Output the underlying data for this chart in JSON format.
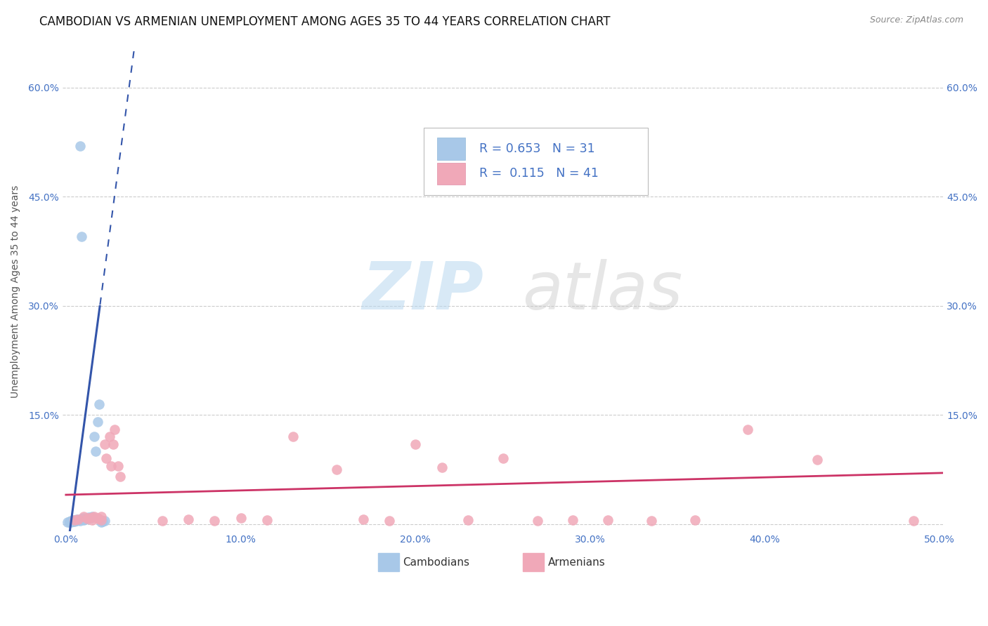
{
  "title": "CAMBODIAN VS ARMENIAN UNEMPLOYMENT AMONG AGES 35 TO 44 YEARS CORRELATION CHART",
  "source": "Source: ZipAtlas.com",
  "ylabel": "Unemployment Among Ages 35 to 44 years",
  "xlim": [
    -0.002,
    0.502
  ],
  "ylim": [
    -0.01,
    0.65
  ],
  "xticks": [
    0.0,
    0.1,
    0.2,
    0.3,
    0.4,
    0.5
  ],
  "xticklabels": [
    "0.0%",
    "10.0%",
    "20.0%",
    "30.0%",
    "40.0%",
    "50.0%"
  ],
  "yticks": [
    0.0,
    0.15,
    0.3,
    0.45,
    0.6
  ],
  "yticklabels": [
    "",
    "15.0%",
    "30.0%",
    "45.0%",
    "60.0%"
  ],
  "grid_color": "#cccccc",
  "background_color": "#ffffff",
  "cambodian_color": "#a8c8e8",
  "armenian_color": "#f0a8b8",
  "cambodian_line_color": "#3355aa",
  "armenian_line_color": "#cc3366",
  "cambodian_scatter": [
    [
      0.001,
      0.002
    ],
    [
      0.002,
      0.003
    ],
    [
      0.002,
      0.002
    ],
    [
      0.003,
      0.004
    ],
    [
      0.003,
      0.002
    ],
    [
      0.004,
      0.005
    ],
    [
      0.004,
      0.003
    ],
    [
      0.005,
      0.004
    ],
    [
      0.005,
      0.003
    ],
    [
      0.006,
      0.006
    ],
    [
      0.006,
      0.004
    ],
    [
      0.007,
      0.005
    ],
    [
      0.008,
      0.006
    ],
    [
      0.008,
      0.004
    ],
    [
      0.009,
      0.007
    ],
    [
      0.01,
      0.005
    ],
    [
      0.01,
      0.008
    ],
    [
      0.011,
      0.006
    ],
    [
      0.012,
      0.007
    ],
    [
      0.013,
      0.009
    ],
    [
      0.014,
      0.008
    ],
    [
      0.015,
      0.01
    ],
    [
      0.016,
      0.12
    ],
    [
      0.017,
      0.1
    ],
    [
      0.018,
      0.14
    ],
    [
      0.019,
      0.165
    ],
    [
      0.02,
      0.002
    ],
    [
      0.021,
      0.003
    ],
    [
      0.022,
      0.004
    ],
    [
      0.008,
      0.52
    ],
    [
      0.009,
      0.395
    ]
  ],
  "armenian_scatter": [
    [
      0.005,
      0.005
    ],
    [
      0.007,
      0.006
    ],
    [
      0.01,
      0.01
    ],
    [
      0.012,
      0.007
    ],
    [
      0.013,
      0.008
    ],
    [
      0.015,
      0.009
    ],
    [
      0.015,
      0.005
    ],
    [
      0.016,
      0.01
    ],
    [
      0.018,
      0.008
    ],
    [
      0.018,
      0.007
    ],
    [
      0.02,
      0.01
    ],
    [
      0.02,
      0.005
    ],
    [
      0.022,
      0.11
    ],
    [
      0.023,
      0.09
    ],
    [
      0.025,
      0.12
    ],
    [
      0.026,
      0.08
    ],
    [
      0.027,
      0.11
    ],
    [
      0.028,
      0.13
    ],
    [
      0.03,
      0.08
    ],
    [
      0.031,
      0.065
    ],
    [
      0.055,
      0.004
    ],
    [
      0.07,
      0.006
    ],
    [
      0.085,
      0.004
    ],
    [
      0.1,
      0.008
    ],
    [
      0.115,
      0.005
    ],
    [
      0.13,
      0.12
    ],
    [
      0.155,
      0.075
    ],
    [
      0.17,
      0.006
    ],
    [
      0.185,
      0.004
    ],
    [
      0.2,
      0.11
    ],
    [
      0.215,
      0.078
    ],
    [
      0.23,
      0.005
    ],
    [
      0.25,
      0.09
    ],
    [
      0.27,
      0.004
    ],
    [
      0.29,
      0.005
    ],
    [
      0.31,
      0.005
    ],
    [
      0.335,
      0.004
    ],
    [
      0.36,
      0.005
    ],
    [
      0.39,
      0.13
    ],
    [
      0.43,
      0.088
    ],
    [
      0.485,
      0.004
    ]
  ],
  "R_cambodian": "0.653",
  "N_cambodian": "31",
  "R_armenian": "0.115",
  "N_armenian": "41",
  "watermark_zip": "ZIP",
  "watermark_atlas": "atlas",
  "legend_label_cambodian": "Cambodians",
  "legend_label_armenian": "Armenians",
  "tick_color": "#4472c4",
  "tick_fontsize": 10,
  "title_fontsize": 12,
  "source_fontsize": 9,
  "ylabel_fontsize": 10
}
